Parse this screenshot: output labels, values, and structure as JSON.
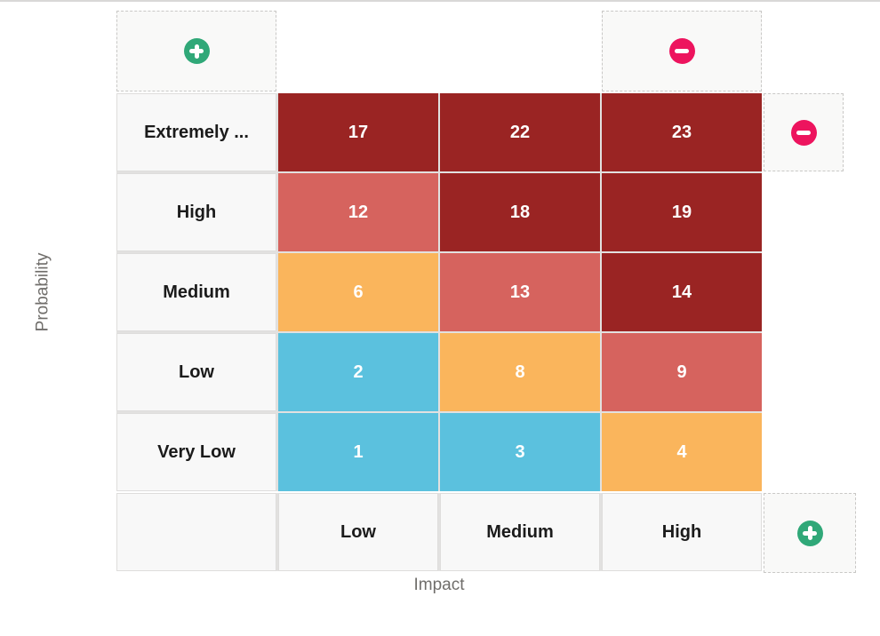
{
  "axes": {
    "y_label": "Probability",
    "x_label": "Impact"
  },
  "matrix": {
    "row_labels": [
      "Extremely ...",
      "High",
      "Medium",
      "Low",
      "Very Low"
    ],
    "column_labels": [
      "Low",
      "Medium",
      "High"
    ],
    "cells": [
      [
        {
          "value": "17",
          "color": "#9A2423"
        },
        {
          "value": "22",
          "color": "#9A2423"
        },
        {
          "value": "23",
          "color": "#9A2423"
        }
      ],
      [
        {
          "value": "12",
          "color": "#D6635E"
        },
        {
          "value": "18",
          "color": "#9A2423"
        },
        {
          "value": "19",
          "color": "#9A2423"
        }
      ],
      [
        {
          "value": "6",
          "color": "#FAB55C"
        },
        {
          "value": "13",
          "color": "#D6635E"
        },
        {
          "value": "14",
          "color": "#9A2423"
        }
      ],
      [
        {
          "value": "2",
          "color": "#5BC1DE"
        },
        {
          "value": "8",
          "color": "#FAB55C"
        },
        {
          "value": "9",
          "color": "#D6635E"
        }
      ],
      [
        {
          "value": "1",
          "color": "#5BC1DE"
        },
        {
          "value": "3",
          "color": "#5BC1DE"
        },
        {
          "value": "4",
          "color": "#FAB55C"
        }
      ]
    ]
  },
  "controls": {
    "add_row": {
      "icon": "plus-icon",
      "color": "#30A878"
    },
    "remove_column": {
      "icon": "minus-icon",
      "color": "#ED145E"
    },
    "remove_row": {
      "icon": "minus-icon",
      "color": "#ED145E"
    },
    "add_column": {
      "icon": "plus-icon",
      "color": "#30A878"
    }
  }
}
